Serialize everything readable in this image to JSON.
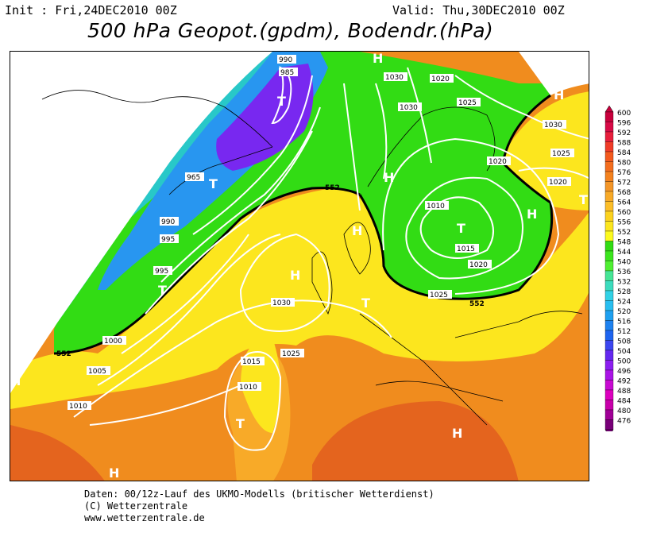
{
  "header": {
    "init": "Init : Fri,24DEC2010 00Z",
    "valid": "Valid: Thu,30DEC2010 00Z",
    "title": "500 hPa Geopot.(gpdm), Bodendr.(hPa)"
  },
  "footer": {
    "line1": "Daten: 00/12z-Lauf des UKMO-Modells (britischer Wetterdienst)",
    "line2": "(C) Wetterzentrale",
    "line3": "www.wetterzentrale.de"
  },
  "legend_scale": {
    "values": [
      "600",
      "596",
      "592",
      "588",
      "584",
      "580",
      "576",
      "572",
      "568",
      "564",
      "560",
      "556",
      "552",
      "548",
      "544",
      "540",
      "536",
      "532",
      "528",
      "524",
      "520",
      "516",
      "512",
      "508",
      "504",
      "500",
      "496",
      "492",
      "488",
      "484",
      "480",
      "476"
    ],
    "colors": [
      "#c8003c",
      "#d80a46",
      "#e81e3c",
      "#f03c28",
      "#f45a1e",
      "#f46e1e",
      "#f4821e",
      "#f49628",
      "#f8aa28",
      "#fcbe28",
      "#fcd21e",
      "#fce61e",
      "#fcfa1e",
      "#32dc14",
      "#3ce61e",
      "#50f032",
      "#46e696",
      "#3cdcbe",
      "#32d2e6",
      "#28beF0",
      "#1ea0f0",
      "#1e82f0",
      "#1e64f0",
      "#3c46f0",
      "#6428f0",
      "#8c1ef0",
      "#aa14e6",
      "#c80ad2",
      "#dc00be",
      "#c800aa",
      "#a00096",
      "#780078"
    ]
  },
  "map": {
    "colors": {
      "ocean_orange": "#f08c1e",
      "dark_orange": "#e4641e",
      "light_orange": "#f8aa28",
      "yellow": "#fce61e",
      "green": "#32dc14",
      "teal": "#28c8c8",
      "blue": "#2896f0",
      "purple": "#7828f0",
      "isobar": "#ffffff",
      "contour552": "#000000"
    },
    "pressure_labels": [
      "990",
      "985",
      "965",
      "990",
      "995",
      "995",
      "1000",
      "1005",
      "1010",
      "1015",
      "1010",
      "1025",
      "1030",
      "1030",
      "1030",
      "1020",
      "1025",
      "1030",
      "1025",
      "1020",
      "1020",
      "1010",
      "1015",
      "1020",
      "1025"
    ],
    "contour_label": "552",
    "markers": [
      {
        "name": "T-greenland",
        "text": "T"
      },
      {
        "name": "T-canada",
        "text": "T"
      },
      {
        "name": "T-atlantic",
        "text": "T"
      },
      {
        "name": "H-britain",
        "text": "H"
      },
      {
        "name": "H-scandinavia",
        "text": "H"
      },
      {
        "name": "H-norway",
        "text": "H"
      },
      {
        "name": "T-baltic",
        "text": "T"
      },
      {
        "name": "H-russia",
        "text": "H"
      },
      {
        "name": "H-north",
        "text": "H"
      },
      {
        "name": "H-northeast",
        "text": "H"
      },
      {
        "name": "T-east",
        "text": "T"
      },
      {
        "name": "T-azores",
        "text": "T"
      },
      {
        "name": "H-mediterranean",
        "text": "H"
      },
      {
        "name": "H-southwest",
        "text": "H"
      },
      {
        "name": "H-west",
        "text": "H"
      },
      {
        "name": "T-france",
        "text": "T"
      }
    ]
  }
}
